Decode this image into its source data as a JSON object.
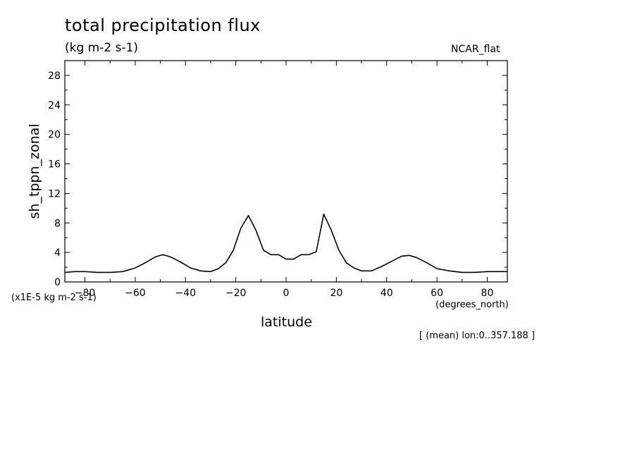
{
  "header": {
    "title": "total precipitation flux",
    "subtitle": "(kg m-2 s-1)",
    "source": "NCAR_flat"
  },
  "footer": {
    "note": "[ (mean) lon:0..357.188 ]"
  },
  "chart_data": {
    "type": "line",
    "xlabel": "latitude",
    "ylabel": "sh_tppn_zonal",
    "x_unit_label": "(degrees_north)",
    "y_unit_label": "(x1E-5 kg m-2 s-1)",
    "xlim": [
      -88,
      88
    ],
    "ylim": [
      0,
      30
    ],
    "x_ticks": [
      -80,
      -60,
      -40,
      -20,
      0,
      20,
      40,
      60,
      80
    ],
    "y_ticks": [
      0,
      4,
      8,
      12,
      16,
      20,
      24,
      28
    ],
    "grid": false,
    "series": [
      {
        "x": [
          -88,
          -84,
          -80,
          -75,
          -70,
          -65,
          -60,
          -56,
          -52,
          -49,
          -46,
          -42,
          -38,
          -34,
          -30,
          -27,
          -24,
          -21,
          -18,
          -15,
          -12,
          -9,
          -6,
          -3,
          0,
          3,
          6,
          9,
          12,
          15,
          18,
          21,
          24,
          27,
          30,
          34,
          38,
          42,
          46,
          49,
          52,
          56,
          60,
          65,
          70,
          75,
          80,
          84,
          88
        ],
        "y": [
          1.3,
          1.4,
          1.4,
          1.3,
          1.3,
          1.4,
          1.9,
          2.6,
          3.4,
          3.7,
          3.4,
          2.7,
          1.9,
          1.5,
          1.4,
          1.8,
          2.6,
          4.3,
          7.3,
          9.0,
          7.0,
          4.3,
          3.7,
          3.7,
          3.1,
          3.1,
          3.7,
          3.7,
          4.1,
          9.2,
          7.0,
          4.3,
          2.6,
          1.9,
          1.5,
          1.5,
          2.1,
          2.8,
          3.5,
          3.6,
          3.3,
          2.6,
          1.8,
          1.5,
          1.3,
          1.3,
          1.4,
          1.4,
          1.4
        ],
        "color": "#000000"
      }
    ]
  }
}
